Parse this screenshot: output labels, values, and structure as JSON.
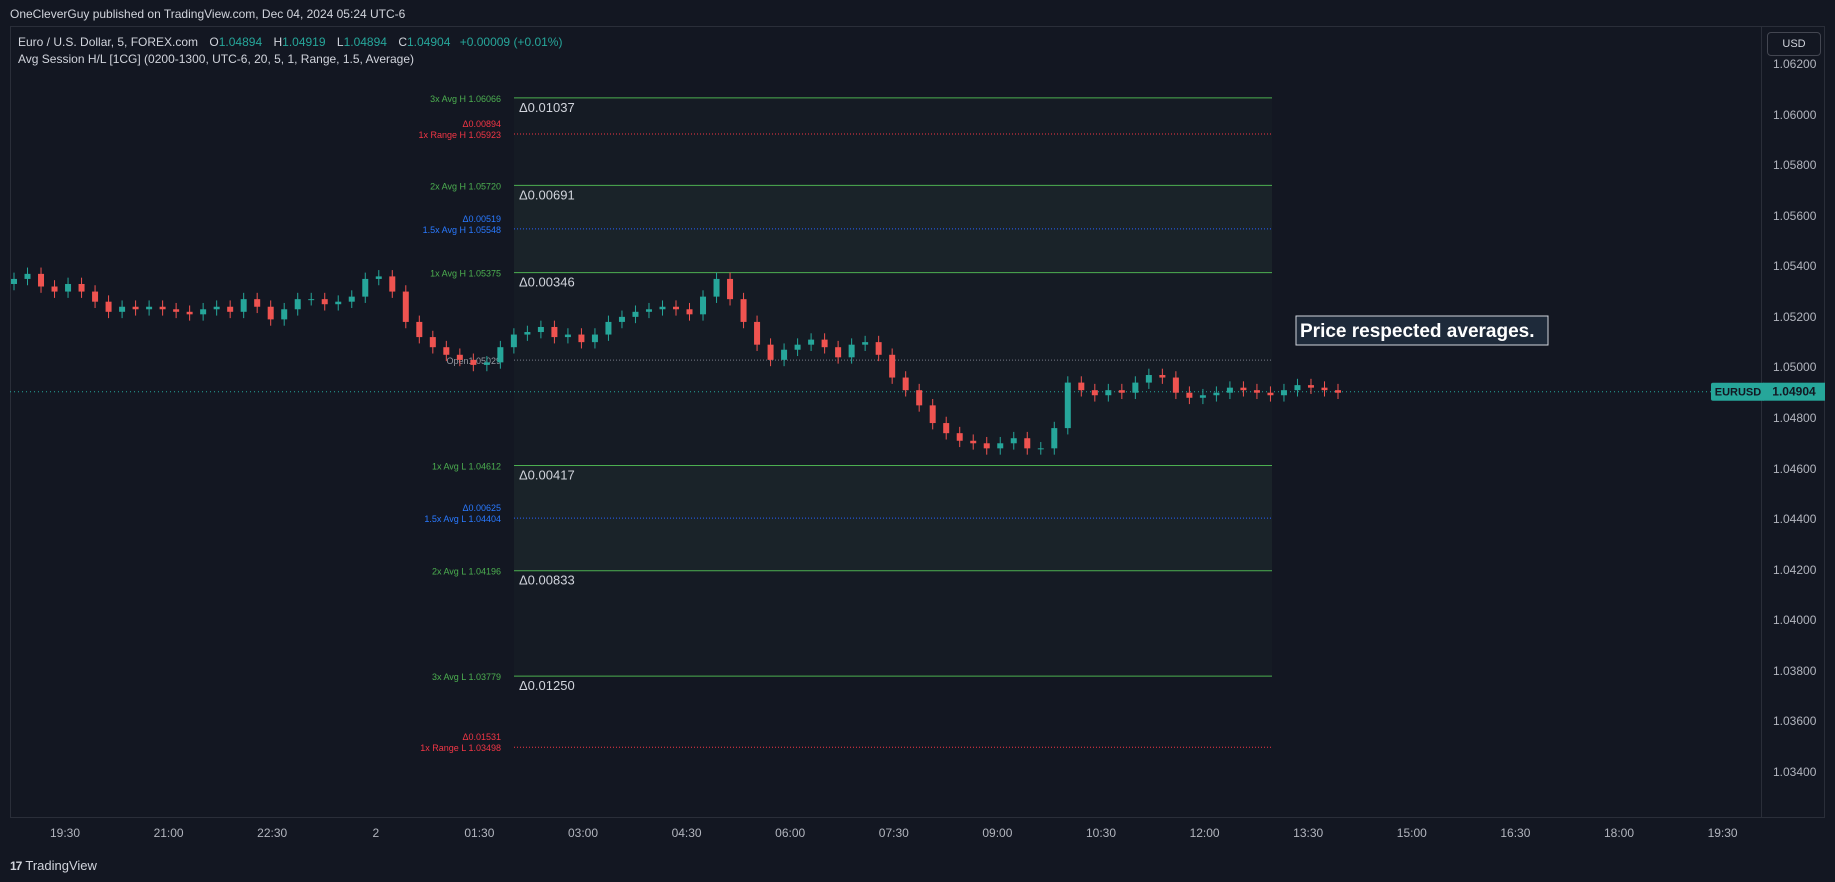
{
  "header": {
    "publisher": "OneCleverGuy published on TradingView.com, Dec 04, 2024 05:24 UTC-6"
  },
  "legend": {
    "symbol": "Euro / U.S. Dollar, 5, FOREX.com",
    "open_label": "O",
    "open": "1.04894",
    "high_label": "H",
    "high": "1.04919",
    "low_label": "L",
    "low": "1.04894",
    "close_label": "C",
    "close": "1.04904",
    "change": "+0.00009 (+0.01%)",
    "indicator": "Avg Session H/L [1CG] (0200-1300, UTC-6, 20, 5, 1, Range, 1.5, Average)"
  },
  "currency_button": "USD",
  "colors": {
    "up": "#26a69a",
    "down": "#ef5350",
    "avg_line": "#4caf50",
    "blue_line": "#2962ff",
    "range_line": "#f23645",
    "zone_fill": "#1a2329"
  },
  "levels": [
    {
      "id": "3x-avg-h",
      "label": "3x Avg H 1.06066",
      "price": 1.06066,
      "kind": "green",
      "delta": "Δ0.01037"
    },
    {
      "id": "1x-range-h",
      "label": "1x Range H 1.05923",
      "price": 1.05923,
      "kind": "red",
      "delta_small": "Δ0.00894"
    },
    {
      "id": "2x-avg-h",
      "label": "2x Avg H 1.05720",
      "price": 1.0572,
      "kind": "green",
      "delta": "Δ0.00691"
    },
    {
      "id": "1-5x-avg-h",
      "label": "1.5x Avg H 1.05548",
      "price": 1.05548,
      "kind": "blue",
      "delta_small": "Δ0.00519"
    },
    {
      "id": "1x-avg-h",
      "label": "1x Avg H 1.05375",
      "price": 1.05375,
      "kind": "green",
      "delta": "Δ0.00346"
    },
    {
      "id": "open",
      "label": "Open1.05029",
      "price": 1.05029,
      "kind": "gray"
    },
    {
      "id": "1x-avg-l",
      "label": "1x Avg L 1.04612",
      "price": 1.04612,
      "kind": "green",
      "delta": "Δ0.00417"
    },
    {
      "id": "1-5x-avg-l",
      "label": "1.5x Avg L 1.04404",
      "price": 1.04404,
      "kind": "blue",
      "delta_small": "Δ0.00625"
    },
    {
      "id": "2x-avg-l",
      "label": "2x Avg L 1.04196",
      "price": 1.04196,
      "kind": "green",
      "delta": "Δ0.00833"
    },
    {
      "id": "3x-avg-l",
      "label": "3x Avg L 1.03779",
      "price": 1.03779,
      "kind": "green",
      "delta": "Δ0.01250"
    },
    {
      "id": "1x-range-l",
      "label": "1x Range L 1.03498",
      "price": 1.03498,
      "kind": "red",
      "delta_small": "Δ0.01531"
    }
  ],
  "annotation": "Price respected averages.",
  "last_price": {
    "symbol": "EURUSD",
    "price": "1.04904",
    "value": 1.04904
  },
  "price_axis": [
    "1.06200",
    "1.06000",
    "1.05800",
    "1.05600",
    "1.05400",
    "1.05200",
    "1.05000",
    "1.04800",
    "1.04600",
    "1.04400",
    "1.04200",
    "1.04000",
    "1.03800",
    "1.03600",
    "1.03400"
  ],
  "time_axis": [
    "19:30",
    "21:00",
    "22:30",
    "2",
    "01:30",
    "03:00",
    "04:30",
    "06:00",
    "07:30",
    "09:00",
    "10:30",
    "12:00",
    "13:30",
    "15:00",
    "16:30",
    "18:00",
    "19:30"
  ],
  "footer": {
    "brand": "TradingView"
  },
  "chart_data": {
    "type": "line",
    "title": "Euro / U.S. Dollar, 5, FOREX.com",
    "series": [
      {
        "values": [
          1.0535,
          1.0537,
          1.0532,
          1.053,
          1.0533,
          1.053,
          1.0526,
          1.0522,
          1.0524,
          1.0523,
          1.0524,
          1.0523,
          1.0522,
          1.0521,
          1.0523,
          1.0524,
          1.0522,
          1.0527,
          1.0524,
          1.0519,
          1.0523,
          1.0527,
          1.0527,
          1.0525,
          1.0526,
          1.0528,
          1.0535,
          1.0536,
          1.053,
          1.0518,
          1.0512,
          1.0508,
          1.0505,
          1.0503,
          1.0501,
          1.0502,
          1.0508,
          1.0513,
          1.0514,
          1.0516,
          1.0512,
          1.0513,
          1.051,
          1.0513,
          1.0518,
          1.052,
          1.0522,
          1.0523,
          1.0524,
          1.0523,
          1.0521,
          1.0528,
          1.0535,
          1.0527,
          1.0518,
          1.0509,
          1.0503,
          1.0507,
          1.0509,
          1.0511,
          1.0508,
          1.0504,
          1.0509,
          1.051,
          1.0505,
          1.0496,
          1.0491,
          1.0485,
          1.0478,
          1.0474,
          1.0471,
          1.047,
          1.0468,
          1.047,
          1.0472,
          1.0468,
          1.0468,
          1.0476,
          1.0494,
          1.0491,
          1.0489,
          1.0491,
          1.049,
          1.0494,
          1.0497,
          1.0496,
          1.049,
          1.0488,
          1.0489,
          1.049,
          1.0492,
          1.0491,
          1.049,
          1.0489,
          1.0491,
          1.0493,
          1.0492,
          1.0491,
          1.049
        ]
      }
    ]
  }
}
